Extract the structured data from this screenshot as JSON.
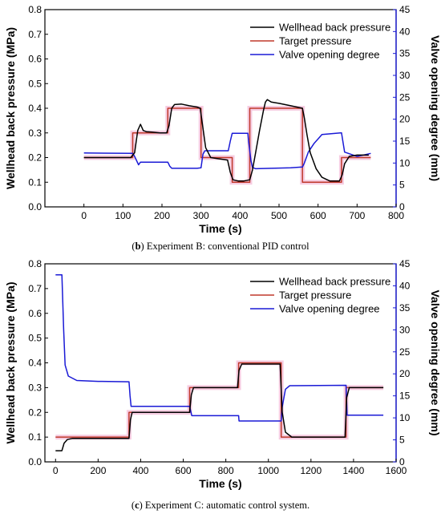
{
  "captions": {
    "b_letter": "b",
    "b_text": " Experiment B: conventional PID control",
    "c_letter": "c",
    "c_text": " Experiment C: automatic control system."
  },
  "colors": {
    "wellhead": "#000000",
    "target": "#c0392b",
    "target_band": "#f5c6de",
    "valve": "#1a1ad6",
    "axis_right": "#1a1ad6",
    "axis_left": "#000000"
  },
  "chart_data": [
    {
      "type": "line",
      "xlabel": "Time (s)",
      "ylabel": "Wellhead back pressure (MPa)",
      "ylabel_right": "Valve opening degree (mm)",
      "xlim": [
        -100,
        800
      ],
      "ylim": [
        0,
        0.8
      ],
      "ylim_right": [
        0,
        45
      ],
      "xticks": [
        0,
        100,
        200,
        300,
        400,
        500,
        600,
        700,
        800
      ],
      "yticks": [
        0,
        0.1,
        0.2,
        0.3,
        0.4,
        0.5,
        0.6,
        0.7,
        0.8
      ],
      "yticks_right": [
        0,
        5,
        10,
        15,
        20,
        25,
        30,
        35,
        40,
        45
      ],
      "legend_position": "top-right",
      "series": [
        {
          "name": "Wellhead back pressure",
          "axis": "left",
          "x": [
            0,
            120,
            130,
            138,
            145,
            152,
            160,
            175,
            195,
            212,
            218,
            225,
            232,
            250,
            270,
            290,
            298,
            305,
            312,
            325,
            345,
            368,
            375,
            382,
            395,
            410,
            425,
            432,
            440,
            450,
            460,
            465,
            470,
            480,
            500,
            530,
            560,
            565,
            572,
            580,
            595,
            610,
            630,
            655,
            662,
            668,
            680,
            700,
            730
          ],
          "y": [
            0.2,
            0.2,
            0.22,
            0.31,
            0.335,
            0.31,
            0.305,
            0.303,
            0.3,
            0.3,
            0.33,
            0.4,
            0.415,
            0.417,
            0.41,
            0.405,
            0.4,
            0.32,
            0.24,
            0.2,
            0.195,
            0.19,
            0.14,
            0.11,
            0.105,
            0.105,
            0.11,
            0.15,
            0.22,
            0.31,
            0.39,
            0.425,
            0.435,
            0.425,
            0.42,
            0.41,
            0.4,
            0.36,
            0.29,
            0.22,
            0.155,
            0.12,
            0.105,
            0.105,
            0.13,
            0.175,
            0.205,
            0.21,
            0.21
          ]
        },
        {
          "name": "Target pressure",
          "axis": "left",
          "x": [
            0,
            125,
            125,
            215,
            215,
            300,
            300,
            380,
            380,
            425,
            425,
            560,
            560,
            660,
            660,
            735
          ],
          "y": [
            0.2,
            0.2,
            0.3,
            0.3,
            0.4,
            0.4,
            0.2,
            0.2,
            0.1,
            0.1,
            0.4,
            0.4,
            0.1,
            0.1,
            0.2,
            0.2
          ]
        },
        {
          "name": "Valve opening degree",
          "axis": "right",
          "x": [
            0,
            125,
            130,
            140,
            145,
            215,
            220,
            225,
            290,
            300,
            305,
            310,
            370,
            375,
            380,
            420,
            422,
            428,
            432,
            440,
            480,
            530,
            560,
            565,
            575,
            590,
            600,
            610,
            660,
            668,
            700,
            735
          ],
          "y": [
            12.3,
            12.2,
            11.5,
            9.6,
            10.2,
            10.2,
            9.3,
            8.8,
            8.8,
            8.9,
            12.0,
            12.8,
            12.8,
            15.0,
            16.8,
            16.8,
            15.0,
            10.5,
            9.0,
            8.7,
            8.8,
            8.9,
            9.1,
            10.0,
            12.5,
            14.5,
            15.5,
            16.5,
            16.9,
            12.5,
            11.5,
            12.2
          ]
        }
      ]
    },
    {
      "type": "line",
      "xlabel": "Time (s)",
      "ylabel": "Wellhead back pressure (MPa)",
      "ylabel_right": "Valve opening degree (mm)",
      "xlim": [
        -50,
        1600
      ],
      "ylim": [
        0,
        0.8
      ],
      "ylim_right": [
        0,
        45
      ],
      "xticks": [
        0,
        200,
        400,
        600,
        800,
        1000,
        1200,
        1400,
        1600
      ],
      "yticks": [
        0,
        0.1,
        0.2,
        0.3,
        0.4,
        0.5,
        0.6,
        0.7,
        0.8
      ],
      "yticks_right": [
        0,
        5,
        10,
        15,
        20,
        25,
        30,
        35,
        40,
        45
      ],
      "legend_position": "top-right",
      "series": [
        {
          "name": "Wellhead back pressure",
          "axis": "left",
          "x": [
            0,
            30,
            40,
            55,
            80,
            345,
            352,
            360,
            380,
            630,
            638,
            648,
            855,
            862,
            875,
            1055,
            1065,
            1080,
            1110,
            1360,
            1368,
            1380,
            1540
          ],
          "y": [
            0.045,
            0.045,
            0.075,
            0.09,
            0.095,
            0.095,
            0.17,
            0.2,
            0.2,
            0.2,
            0.27,
            0.3,
            0.3,
            0.37,
            0.395,
            0.395,
            0.2,
            0.12,
            0.1,
            0.1,
            0.26,
            0.3,
            0.3
          ]
        },
        {
          "name": "Target pressure",
          "axis": "left",
          "x": [
            0,
            345,
            345,
            630,
            630,
            860,
            860,
            1060,
            1060,
            1365,
            1365,
            1540
          ],
          "y": [
            0.1,
            0.1,
            0.2,
            0.2,
            0.3,
            0.3,
            0.4,
            0.4,
            0.1,
            0.1,
            0.3,
            0.3
          ]
        },
        {
          "name": "Valve opening degree",
          "axis": "right",
          "x": [
            0,
            30,
            38,
            45,
            60,
            100,
            200,
            345,
            350,
            355,
            630,
            640,
            860,
            862,
            1060,
            1065,
            1080,
            1100,
            1365,
            1370,
            1540
          ],
          "y": [
            42.5,
            42.5,
            30,
            22,
            19.5,
            18.5,
            18.3,
            18.2,
            15,
            12.6,
            12.6,
            10.5,
            10.5,
            9.3,
            9.3,
            12.5,
            16.5,
            17.3,
            17.4,
            10.6,
            10.6
          ]
        }
      ]
    }
  ]
}
